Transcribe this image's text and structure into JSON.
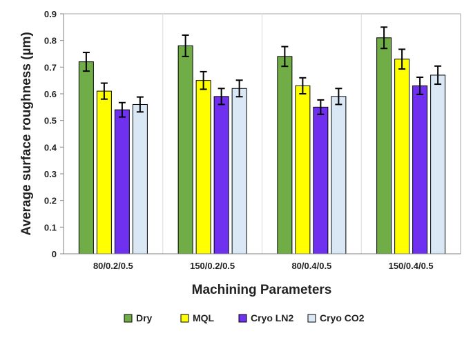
{
  "chart_data": {
    "type": "bar",
    "title": "",
    "xlabel": "Machining Parameters",
    "ylabel": "Average surface roughness (µm)",
    "ylim": [
      0,
      0.9
    ],
    "yticks": [
      0,
      0.1,
      0.2,
      0.3,
      0.4,
      0.5,
      0.6,
      0.7,
      0.8,
      0.9
    ],
    "ytick_labels": [
      "0",
      "0.1",
      "0.2",
      "0.3",
      "0.4",
      "0.5",
      "0.6",
      "0.7",
      "0.8",
      "0.9"
    ],
    "grid": "vertical separators between categories",
    "legend_position": "bottom",
    "categories": [
      "80/0.2/0.5",
      "150/0.2/0.5",
      "80/0.4/0.5",
      "150/0.4/0.5"
    ],
    "series": [
      {
        "name": "Dry",
        "color": "#70ad47",
        "values": [
          0.72,
          0.78,
          0.74,
          0.81
        ],
        "errors": [
          0.035,
          0.04,
          0.037,
          0.04
        ]
      },
      {
        "name": "MQL",
        "color": "#ffff00",
        "values": [
          0.61,
          0.65,
          0.63,
          0.73
        ],
        "errors": [
          0.03,
          0.033,
          0.03,
          0.037
        ]
      },
      {
        "name": "Cryo LN2",
        "color": "#7030f0",
        "values": [
          0.54,
          0.59,
          0.55,
          0.63
        ],
        "errors": [
          0.027,
          0.03,
          0.027,
          0.032
        ]
      },
      {
        "name": "Cryo CO2",
        "color": "#dae8f5",
        "values": [
          0.56,
          0.62,
          0.59,
          0.67
        ],
        "errors": [
          0.028,
          0.031,
          0.03,
          0.034
        ]
      }
    ]
  }
}
